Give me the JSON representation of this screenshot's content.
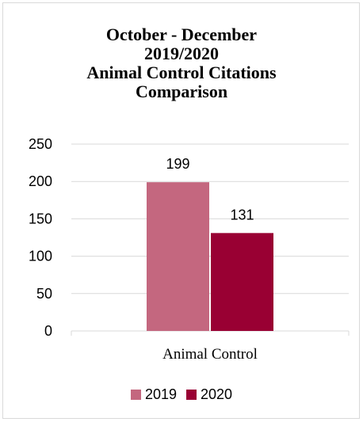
{
  "chart_data": {
    "type": "bar",
    "title_lines": [
      "October - December",
      "2019/2020",
      "Animal Control Citations",
      "Comparison"
    ],
    "categories": [
      "Animal Control"
    ],
    "series": [
      {
        "name": "2019",
        "values": [
          199
        ],
        "color": "#c4677f"
      },
      {
        "name": "2020",
        "values": [
          131
        ],
        "color": "#990033"
      }
    ],
    "ylim": [
      0,
      250
    ],
    "yticks": [
      "0",
      "50",
      "100",
      "150",
      "200",
      "250"
    ],
    "ytick_values": [
      0,
      50,
      100,
      150,
      200,
      250
    ],
    "grid": true,
    "legend_position": "bottom",
    "data_labels": [
      "199",
      "131"
    ]
  }
}
